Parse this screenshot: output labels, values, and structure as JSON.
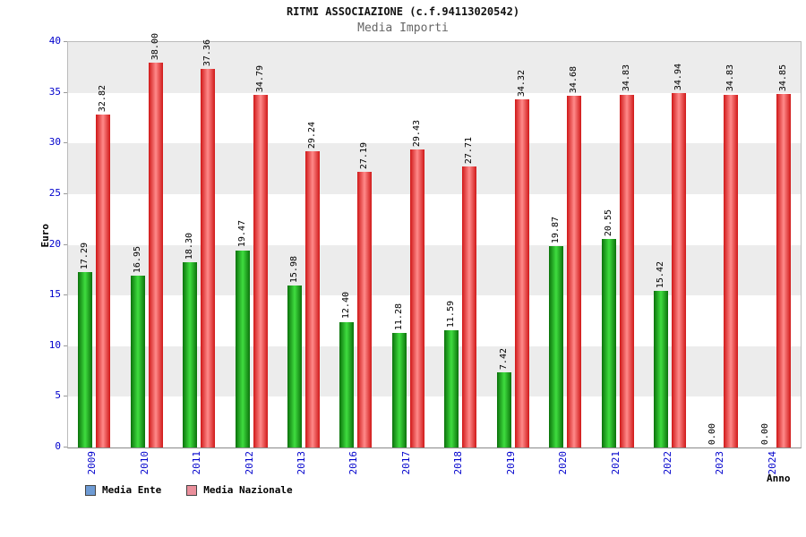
{
  "chart_data": {
    "type": "bar",
    "title": "RITMI ASSOCIAZIONE (c.f.94113020542)",
    "subtitle": "Media Importi",
    "xlabel": "Anno",
    "ylabel": "Euro",
    "ylim": [
      0,
      40
    ],
    "ytick_step": 5,
    "grid": "alternating horizontal bands",
    "legend_position": "bottom-left",
    "categories": [
      "2009",
      "2010",
      "2011",
      "2012",
      "2013",
      "2016",
      "2017",
      "2018",
      "2019",
      "2020",
      "2021",
      "2022",
      "2023",
      "2024"
    ],
    "series": [
      {
        "name": "Media Ente",
        "values": [
          17.29,
          16.95,
          18.3,
          19.47,
          15.98,
          12.4,
          11.28,
          11.59,
          7.42,
          19.87,
          20.55,
          15.42,
          0.0,
          0.0
        ]
      },
      {
        "name": "Media Nazionale",
        "values": [
          32.82,
          38.0,
          37.36,
          34.79,
          29.24,
          27.19,
          29.43,
          27.71,
          34.32,
          34.68,
          34.83,
          34.94,
          34.83,
          34.85
        ]
      }
    ],
    "legend": [
      {
        "label": "Media Ente",
        "swatch": "#6e9bd4"
      },
      {
        "label": "Media Nazionale",
        "swatch": "#ea8f9b"
      }
    ],
    "style": {
      "ente_bar_edge": "#0b720b",
      "ente_bar_mid": "#3fdd3f",
      "nazionale_bar_edge": "#d01818",
      "nazionale_bar_mid": "#ff8a8a",
      "axis_text_color": "#0000cc",
      "band_gray": "#ececec",
      "band_white": "#ffffff"
    }
  }
}
